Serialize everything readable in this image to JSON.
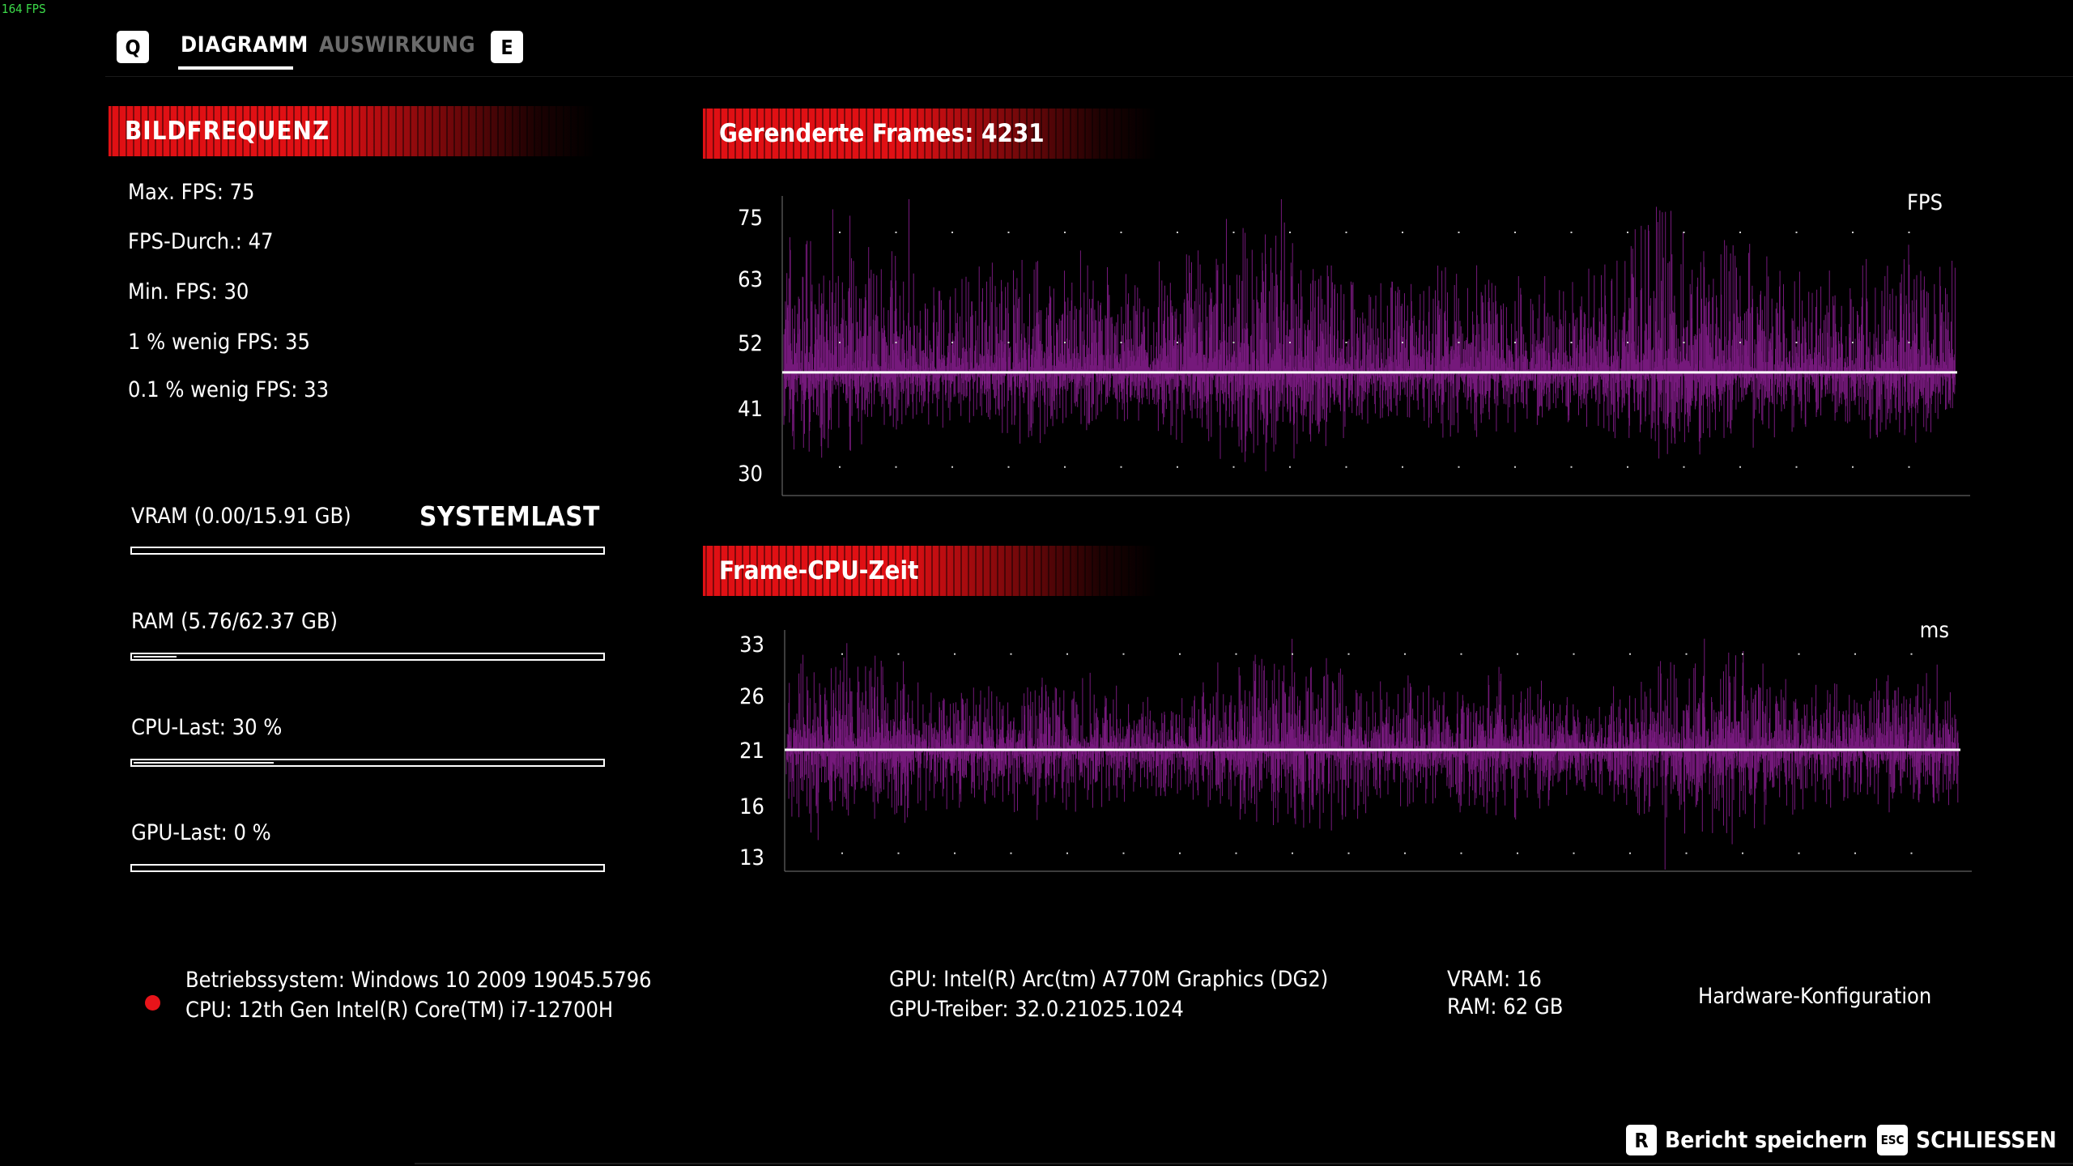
{
  "fps_counter": "164 FPS",
  "tabs": {
    "prev_key": "Q",
    "next_key": "E",
    "items": [
      {
        "label": "DIAGRAMM",
        "active": true
      },
      {
        "label": "AUSWIRKUNG",
        "active": false
      }
    ]
  },
  "framerate": {
    "title": "BILDFREQUENZ",
    "stats": [
      "Max. FPS: 75",
      "FPS-Durch.: 47",
      "Min. FPS: 30",
      "1 % wenig FPS: 35",
      "0.1 % wenig FPS: 33"
    ]
  },
  "systemlast": {
    "title": "SYSTEMLAST",
    "bars": [
      {
        "label": "VRAM (0.00/15.91 GB)",
        "fraction": 0.0
      },
      {
        "label": "RAM (5.76/62.37 GB)",
        "fraction": 0.092
      },
      {
        "label": "CPU-Last: 30 %",
        "fraction": 0.3
      },
      {
        "label": "GPU-Last: 0 %",
        "fraction": 0.0
      }
    ]
  },
  "chart_data": [
    {
      "type": "line",
      "title": "Gerenderte Frames: 4231",
      "unit_label": "FPS",
      "y_ticks": [
        "75",
        "63",
        "52",
        "41",
        "30"
      ],
      "ylim": [
        30,
        75
      ],
      "average": 47,
      "sample_count": 4231,
      "series_color": "#7b1a82",
      "average_line_color": "#ffffff",
      "grid": "dotted"
    },
    {
      "type": "line",
      "title": "Frame-CPU-Zeit",
      "unit_label": "ms",
      "y_ticks": [
        "33",
        "26",
        "21",
        "16",
        "13"
      ],
      "ylim": [
        13,
        33
      ],
      "average": 21,
      "sample_count": 4231,
      "series_color": "#7b1a82",
      "average_line_color": "#ffffff",
      "grid": "dotted"
    }
  ],
  "system_info": {
    "os": "Betriebssystem: Windows 10 2009 19045.5796",
    "cpu": "CPU: 12th Gen Intel(R) Core(TM) i7-12700H",
    "gpu": "GPU: Intel(R) Arc(tm) A770M Graphics (DG2)",
    "gpu_driver": "GPU-Treiber: 32.0.21025.1024",
    "vram": "VRAM: 16",
    "ram": "RAM: 62 GB",
    "hardware_config": "Hardware-Konfiguration"
  },
  "footer": {
    "save_key": "R",
    "save_label": "Bericht speichern",
    "close_key": "ESC",
    "close_label": "SCHLIESSEN"
  }
}
